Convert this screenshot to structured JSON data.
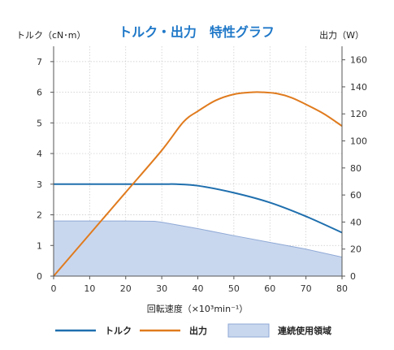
{
  "chart_data": {
    "type": "line",
    "title": "トルク・出力　特性グラフ",
    "xlabel": "回転速度（×10³min⁻¹）",
    "ylabel_left": "トルク（cN･m）",
    "ylabel_right": "出力（W）",
    "xlim": [
      0,
      80
    ],
    "ylim_left": [
      0,
      7.5
    ],
    "ylim_right": [
      0,
      170
    ],
    "x_ticks": [
      0,
      10,
      20,
      30,
      40,
      50,
      60,
      70,
      80
    ],
    "y_left_ticks": [
      0,
      1,
      2,
      3,
      4,
      5,
      6,
      7
    ],
    "y_right_ticks": [
      0,
      20,
      40,
      60,
      80,
      100,
      120,
      140,
      160
    ],
    "grid": true,
    "legend_position": "bottom",
    "colors": {
      "torque": "#1f6fae",
      "output": "#e07b1e",
      "continuous": "#c9d7ee",
      "continuous_edge": "#8fa9d6",
      "title": "#1f78c8"
    },
    "series": [
      {
        "name": "トルク",
        "axis": "left",
        "style": "line",
        "x": [
          0,
          10,
          20,
          30,
          34,
          40,
          50,
          60,
          70,
          80
        ],
        "y": [
          3.0,
          3.0,
          3.0,
          3.0,
          3.0,
          2.95,
          2.72,
          2.4,
          1.95,
          1.42
        ]
      },
      {
        "name": "出力",
        "axis": "right",
        "style": "line",
        "x": [
          0,
          10,
          20,
          30,
          36,
          40,
          45,
          50,
          55,
          58,
          62,
          66,
          70,
          75,
          80
        ],
        "y": [
          0,
          31,
          62,
          93,
          114,
          122,
          130,
          134.5,
          136,
          136,
          135,
          132,
          127,
          120,
          111
        ]
      },
      {
        "name": "連続使用領域",
        "axis": "left",
        "style": "area",
        "x": [
          0,
          10,
          20,
          28,
          30,
          40,
          50,
          60,
          70,
          80
        ],
        "y": [
          1.8,
          1.8,
          1.8,
          1.79,
          1.76,
          1.55,
          1.32,
          1.1,
          0.88,
          0.62
        ]
      }
    ]
  }
}
